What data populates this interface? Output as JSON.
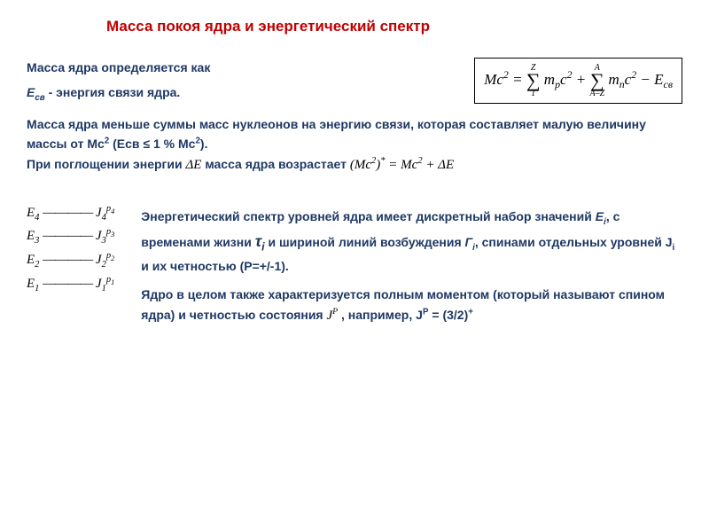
{
  "title": "Масса покоя ядра и энергетический спектр",
  "line_mass_def": "Масса ядра определяется как",
  "line_binding": "Eсв - энергия связи ядра.",
  "main_formula": {
    "lhs": "Mc",
    "sum1_top": "Z",
    "sum1_bot": "1",
    "sum1_term_a": "m",
    "sum1_term_sub": "p",
    "sum1_term_b": "c",
    "sum2_top": "A",
    "sum2_bot": "A–Z",
    "sum2_term_a": "m",
    "sum2_term_sub": "n",
    "sum2_term_b": "c",
    "minus": "E",
    "minus_sub": "св"
  },
  "para2_a": "Масса ядра меньше суммы масс нуклеонов на энергию связи, которая составляет малую величину массы от Mc",
  "para2_b": " (Eсв ≤ 1 % Mc",
  "para2_c": ").",
  "para2_d": "При поглощении энергии ",
  "para2_e": " масса ядра возрастает ",
  "deltaE": "ΔE",
  "absorb_formula_l": "(Mc",
  "absorb_formula_r": " = Mc",
  "absorb_formula_end": " + ΔE",
  "levels": [
    {
      "e": "E",
      "ei": "4",
      "j": "J",
      "ji": "4",
      "p": "p",
      "pi": "4"
    },
    {
      "e": "E",
      "ei": "3",
      "j": "J",
      "ji": "3",
      "p": "p",
      "pi": "3"
    },
    {
      "e": "E",
      "ei": "2",
      "j": "J",
      "ji": "2",
      "p": "p",
      "pi": "2"
    },
    {
      "e": "E",
      "ei": "1",
      "j": "J",
      "ji": "1",
      "p": "p",
      "pi": "1"
    }
  ],
  "spectrum_a": "Энергетический спектр уровней ядра имеет дискретный набор значений ",
  "spectrum_ei": "E",
  "spectrum_b": ", с временами жизни ",
  "spectrum_tau": "τ",
  "spectrum_c": " и шириной линий возбуждения ",
  "spectrum_gamma": "Г",
  "spectrum_d": ", спинами отдельных уровней J",
  "spectrum_e": " и их четностью (P=+/-1).",
  "bottom_a": "Ядро в целом также характеризуется полным моментом (который называют спином ядра) и четностью состояния ",
  "bottom_jp": "J",
  "bottom_b": " , например, J",
  "bottom_c": " = (3/2)",
  "colors": {
    "title": "#c00000",
    "navy": "#1f3864",
    "black": "#000000",
    "bg": "#ffffff"
  }
}
